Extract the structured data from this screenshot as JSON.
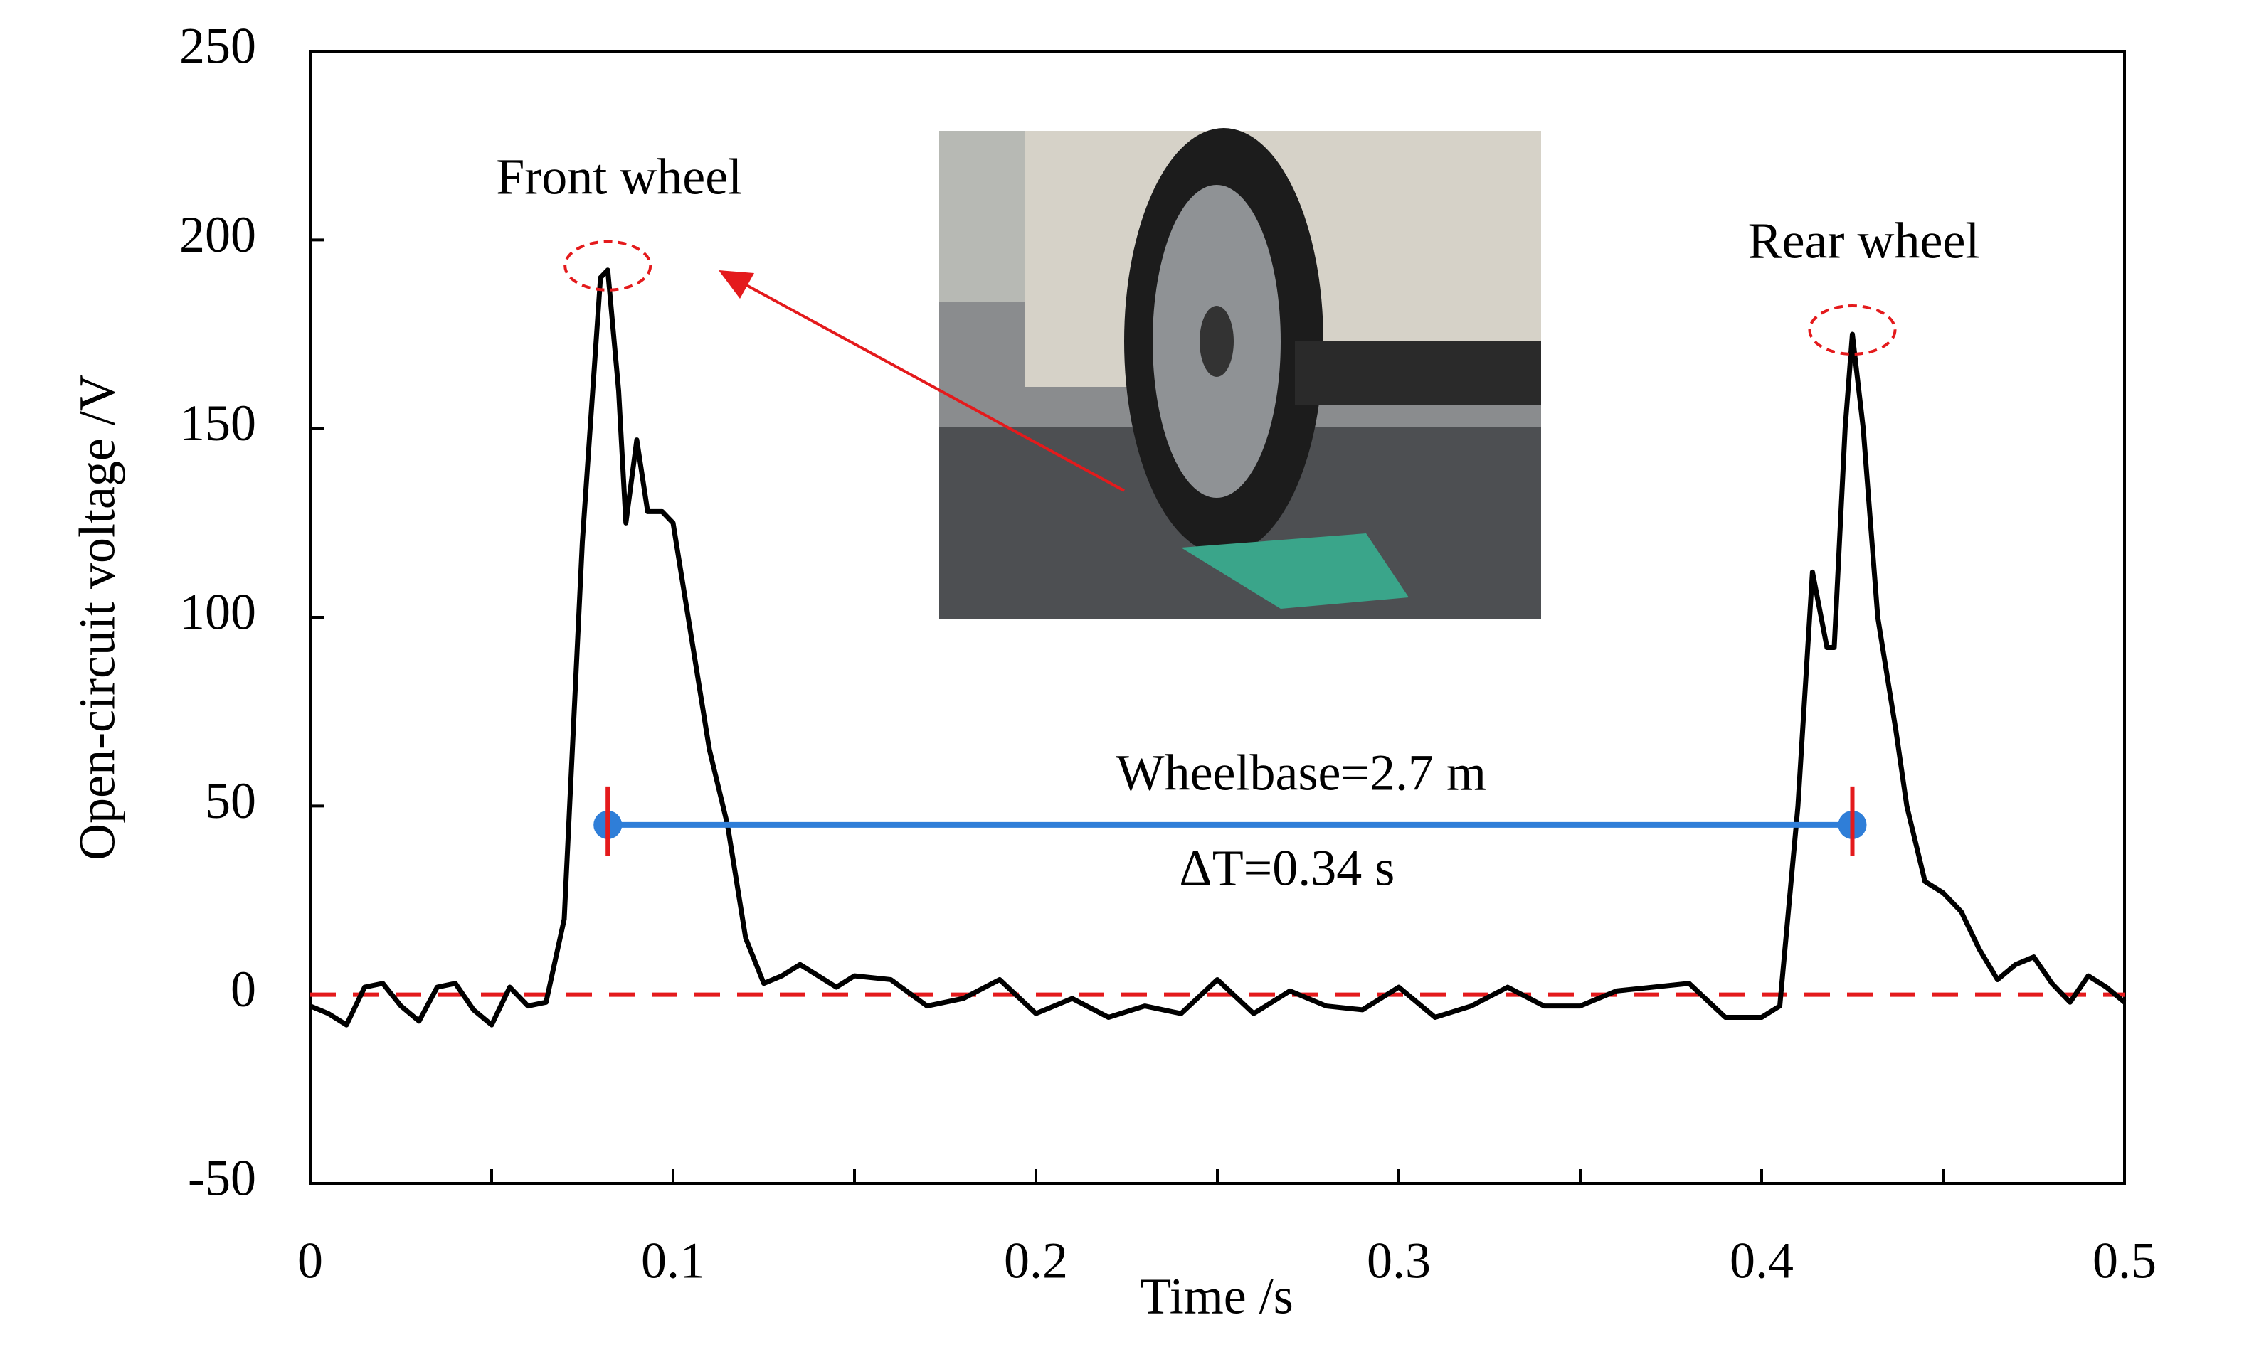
{
  "chart_data": {
    "type": "line",
    "xlabel": "Time /s",
    "ylabel": "Open-circuit voltage /V",
    "xlim": [
      0,
      0.5
    ],
    "ylim": [
      -50,
      250
    ],
    "xticks": [
      0,
      0.1,
      0.2,
      0.3,
      0.4,
      0.5
    ],
    "xminor_ticks": [
      0.05,
      0.15,
      0.25,
      0.35,
      0.45
    ],
    "yticks": [
      -50,
      0,
      50,
      100,
      150,
      200,
      250
    ],
    "reference_line": {
      "y": 0,
      "color": "#e41a1c"
    },
    "x": [
      0,
      0.005,
      0.01,
      0.015,
      0.02,
      0.025,
      0.03,
      0.035,
      0.04,
      0.045,
      0.05,
      0.055,
      0.06,
      0.065,
      0.07,
      0.075,
      0.08,
      0.082,
      0.085,
      0.087,
      0.09,
      0.093,
      0.097,
      0.1,
      0.105,
      0.11,
      0.115,
      0.12,
      0.125,
      0.13,
      0.135,
      0.14,
      0.145,
      0.15,
      0.16,
      0.17,
      0.18,
      0.19,
      0.2,
      0.21,
      0.22,
      0.23,
      0.24,
      0.25,
      0.26,
      0.27,
      0.28,
      0.29,
      0.3,
      0.31,
      0.32,
      0.33,
      0.34,
      0.35,
      0.36,
      0.37,
      0.38,
      0.39,
      0.4,
      0.405,
      0.41,
      0.414,
      0.418,
      0.42,
      0.423,
      0.425,
      0.428,
      0.432,
      0.437,
      0.44,
      0.445,
      0.45,
      0.455,
      0.46,
      0.465,
      0.47,
      0.475,
      0.48,
      0.485,
      0.49,
      0.495,
      0.5
    ],
    "series": [
      {
        "color": "#000000",
        "values": [
          -3,
          -5,
          -8,
          2,
          3,
          -3,
          -7,
          2,
          3,
          -4,
          -8,
          2,
          -3,
          -2,
          20,
          120,
          190,
          192,
          160,
          125,
          147,
          128,
          128,
          125,
          95,
          65,
          45,
          15,
          3,
          5,
          8,
          5,
          2,
          5,
          4,
          -3,
          -1,
          4,
          -5,
          -1,
          -6,
          -3,
          -5,
          4,
          -5,
          1,
          -3,
          -4,
          2,
          -6,
          -3,
          2,
          -3,
          -3,
          1,
          2,
          3,
          -6,
          -6,
          -3,
          50,
          112,
          92,
          92,
          150,
          175,
          150,
          100,
          70,
          50,
          30,
          27,
          22,
          12,
          4,
          8,
          10,
          3,
          -2,
          5,
          2,
          -2
        ]
      }
    ],
    "annotations": [
      {
        "text": "Front wheel",
        "x": 0.082,
        "y": 192
      },
      {
        "text": "Rear wheel",
        "x": 0.425,
        "y": 175
      }
    ],
    "span": {
      "x": [
        0.082,
        0.425
      ],
      "y": 45,
      "color": "#2f7ed8",
      "label_above": "Wheelbase=2.7 m",
      "label_below": "ΔT=0.34 s"
    }
  }
}
